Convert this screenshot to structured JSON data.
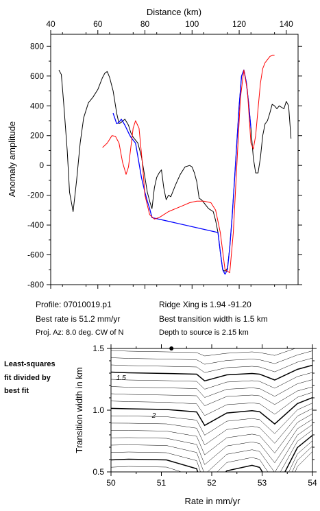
{
  "chart_data": [
    {
      "type": "line",
      "xlabel": "Distance (km)",
      "ylabel": "Anomaly amplitude",
      "xlim": [
        40,
        145
      ],
      "ylim": [
        -800,
        880
      ],
      "xticks": [
        40,
        60,
        80,
        100,
        120,
        140
      ],
      "yticks": [
        -800,
        -600,
        -400,
        -200,
        0,
        200,
        400,
        600,
        800
      ],
      "xaxis_position": "top",
      "series": [
        {
          "color": "#000000",
          "x": [
            43.5,
            44.5,
            45.5,
            47,
            48,
            49.5,
            51,
            52.5,
            54,
            56,
            58,
            60,
            61,
            62,
            63,
            64,
            65,
            66.5,
            68,
            69,
            70,
            71.5,
            73,
            74,
            75,
            76,
            77,
            78.5,
            80,
            81,
            82,
            83,
            84,
            85,
            86,
            87,
            88,
            89,
            90,
            91,
            93,
            95,
            97,
            99,
            100,
            101,
            102,
            103,
            104,
            105,
            107,
            109,
            110,
            111,
            112,
            113,
            114,
            115,
            116,
            117,
            118,
            119,
            120,
            121,
            122,
            123,
            124,
            125,
            126,
            127,
            128,
            129,
            130,
            131,
            132,
            133,
            134,
            135,
            136,
            137,
            138,
            139,
            140,
            141,
            142
          ],
          "y": [
            640,
            610,
            420,
            100,
            -180,
            -310,
            -100,
            150,
            320,
            420,
            460,
            510,
            550,
            590,
            620,
            630,
            590,
            500,
            350,
            280,
            290,
            310,
            270,
            220,
            190,
            170,
            150,
            60,
            -80,
            -180,
            -240,
            -290,
            -150,
            -80,
            -50,
            -30,
            -150,
            -230,
            -200,
            -210,
            -130,
            -60,
            -10,
            0,
            -10,
            -50,
            -110,
            -220,
            -230,
            -250,
            -290,
            -310,
            -370,
            -450,
            -580,
            -700,
            -710,
            -690,
            -550,
            -350,
            -100,
            150,
            400,
            600,
            640,
            560,
            420,
            250,
            50,
            -50,
            -50,
            50,
            200,
            280,
            300,
            350,
            410,
            400,
            380,
            400,
            390,
            380,
            430,
            400,
            180
          ]
        },
        {
          "color": "#0000ff",
          "x": [
            66.5,
            68,
            69,
            70,
            71.5,
            73,
            74,
            75,
            76,
            77,
            78.5,
            80,
            81,
            82,
            83,
            111,
            112,
            113,
            114,
            115,
            116,
            117,
            118,
            119,
            120,
            121,
            122,
            123,
            124,
            125
          ],
          "y": [
            350,
            280,
            290,
            310,
            270,
            220,
            190,
            170,
            150,
            60,
            -80,
            -180,
            -240,
            -290,
            -350,
            -450,
            -580,
            -700,
            -730,
            -700,
            -550,
            -350,
            -100,
            150,
            400,
            600,
            640,
            560,
            420,
            250
          ]
        },
        {
          "color": "#ff0000",
          "x": [
            62,
            64,
            66,
            67.5,
            69,
            70.5,
            72,
            73,
            74,
            75,
            76,
            77.5,
            79,
            80,
            82,
            84,
            86,
            88,
            90,
            93,
            96,
            99,
            102,
            105,
            108,
            110,
            112,
            114,
            116,
            117.5,
            119,
            120.5,
            122,
            123.5,
            125,
            126,
            127,
            128,
            129,
            130,
            131,
            132,
            133,
            134,
            135
          ],
          "y": [
            120,
            150,
            200,
            195,
            150,
            20,
            -60,
            -10,
            120,
            250,
            300,
            250,
            0,
            -200,
            -330,
            -360,
            -350,
            -330,
            -310,
            -290,
            -270,
            -250,
            -240,
            -240,
            -250,
            -300,
            -450,
            -700,
            -720,
            -450,
            0,
            450,
            640,
            500,
            150,
            110,
            200,
            380,
            550,
            650,
            690,
            710,
            730,
            740,
            740
          ]
        }
      ]
    },
    {
      "type": "contour",
      "xlabel": "Rate in mm/yr",
      "ylabel": "Transition width in km",
      "xlim": [
        50,
        54
      ],
      "ylim": [
        0.5,
        1.5
      ],
      "xticks": [
        50,
        51,
        52,
        53,
        54
      ],
      "yticks": [
        0.5,
        1.0,
        1.5
      ],
      "contour_labels": [
        "1.5",
        "2"
      ],
      "best_fit_point": {
        "x": 51.2,
        "y": 1.5
      }
    }
  ],
  "info": {
    "profile": "Profile: 07010019.p1",
    "ridge_xing": "Ridge Xing is 1.94 -91.20",
    "best_rate": "Best rate is 51.2 mm/yr",
    "best_transition": "Best transition width is 1.5 km",
    "proj_az": "Proj. Az: 8.0 deg. CW of N",
    "depth": "Depth to source is   2.15 km"
  },
  "side_note": [
    "Least-squares",
    "fit divided by",
    "best fit"
  ]
}
